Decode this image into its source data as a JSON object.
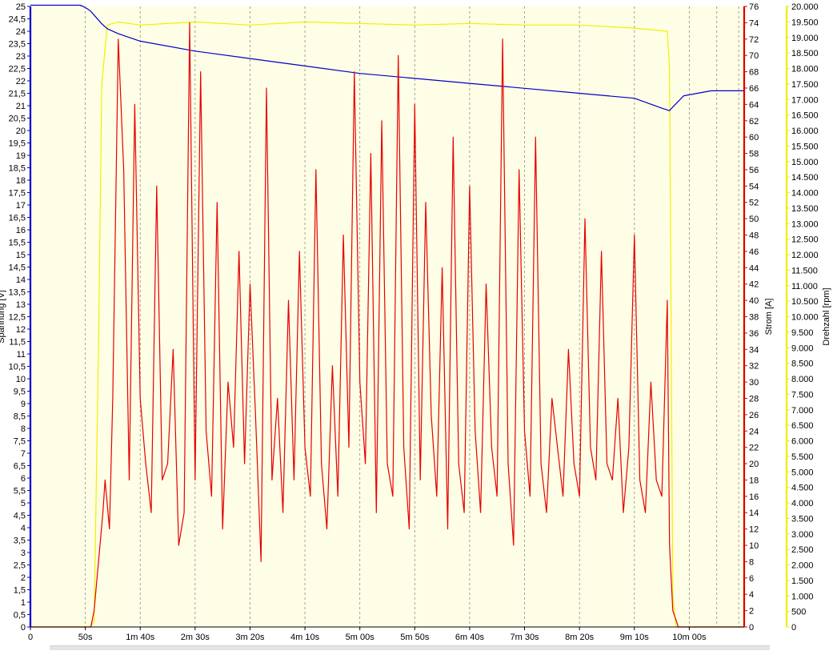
{
  "chart_data": {
    "type": "line",
    "title": "",
    "plot_background": "#fefee6",
    "grid": {
      "vertical": true,
      "horizontal": false,
      "style": "dashed"
    },
    "x_axis": {
      "label": "",
      "range_seconds": [
        0,
        650
      ],
      "ticks": [
        {
          "value": 0,
          "label": "0"
        },
        {
          "value": 50,
          "label": "50s"
        },
        {
          "value": 100,
          "label": "1m 40s"
        },
        {
          "value": 150,
          "label": "2m 30s"
        },
        {
          "value": 200,
          "label": "3m 20s"
        },
        {
          "value": 250,
          "label": "4m 10s"
        },
        {
          "value": 300,
          "label": "5m 00s"
        },
        {
          "value": 350,
          "label": "5m 50s"
        },
        {
          "value": 400,
          "label": "6m 40s"
        },
        {
          "value": 450,
          "label": "7m 30s"
        },
        {
          "value": 500,
          "label": "8m 20s"
        },
        {
          "value": 550,
          "label": "9m 10s"
        },
        {
          "value": 600,
          "label": "10m 00s"
        }
      ]
    },
    "y_axes": [
      {
        "id": "voltage",
        "label": "Spannung [V]",
        "side": "left",
        "color": "#0000cc",
        "range": [
          0,
          25
        ],
        "step": 0.5,
        "decimal_comma": true,
        "decimals": 1
      },
      {
        "id": "current",
        "label": "Strom [A]",
        "side": "right",
        "color": "#dd0000",
        "range": [
          0,
          76
        ],
        "step": 2,
        "decimals": 0
      },
      {
        "id": "rpm",
        "label": "Drehzahl [rpm]",
        "side": "right",
        "color": "#eeee00",
        "range": [
          0,
          20000
        ],
        "step": 500,
        "thousands_sep": "."
      }
    ],
    "series": [
      {
        "axis": "rpm",
        "color": "#f0f000",
        "x": [
          0,
          55,
          58,
          62,
          65,
          70,
          80,
          100,
          150,
          200,
          250,
          300,
          350,
          400,
          450,
          500,
          550,
          580,
          582,
          585,
          588,
          595,
          605,
          620,
          650
        ],
        "y": [
          0,
          0,
          200,
          9000,
          17500,
          19400,
          19500,
          19400,
          19500,
          19400,
          19500,
          19450,
          19400,
          19450,
          19400,
          19400,
          19300,
          19200,
          18000,
          1000,
          0,
          0,
          0,
          0,
          0
        ]
      },
      {
        "axis": "voltage",
        "color": "#0000c8",
        "x": [
          0,
          45,
          48,
          52,
          55,
          65,
          70,
          80,
          100,
          150,
          200,
          250,
          300,
          350,
          400,
          450,
          500,
          550,
          575,
          582,
          585,
          595,
          620,
          650
        ],
        "y": [
          25.05,
          25.05,
          25.0,
          24.9,
          24.8,
          24.3,
          24.1,
          23.9,
          23.6,
          23.2,
          22.9,
          22.6,
          22.3,
          22.1,
          21.9,
          21.7,
          21.5,
          21.3,
          20.9,
          20.8,
          20.95,
          21.4,
          21.6,
          21.6
        ]
      },
      {
        "axis": "current",
        "color": "#e60000",
        "x": [
          0,
          55,
          58,
          62,
          66,
          68,
          72,
          75,
          80,
          85,
          90,
          95,
          100,
          105,
          110,
          115,
          120,
          125,
          130,
          135,
          140,
          145,
          150,
          155,
          160,
          165,
          170,
          175,
          180,
          185,
          190,
          195,
          200,
          205,
          210,
          215,
          220,
          225,
          230,
          235,
          240,
          245,
          250,
          255,
          260,
          265,
          270,
          275,
          280,
          285,
          290,
          295,
          300,
          305,
          310,
          315,
          320,
          325,
          330,
          335,
          340,
          345,
          350,
          355,
          360,
          365,
          370,
          375,
          380,
          385,
          390,
          395,
          400,
          405,
          410,
          415,
          420,
          425,
          430,
          435,
          440,
          445,
          450,
          455,
          460,
          465,
          470,
          475,
          480,
          485,
          490,
          495,
          500,
          505,
          510,
          515,
          520,
          525,
          530,
          535,
          540,
          545,
          550,
          555,
          560,
          565,
          570,
          575,
          580,
          582,
          585,
          590,
          650
        ],
        "y": [
          0,
          0,
          2,
          8,
          14,
          18,
          12,
          28,
          72,
          56,
          18,
          64,
          28,
          20,
          14,
          54,
          18,
          20,
          34,
          10,
          14,
          74,
          18,
          68,
          24,
          16,
          52,
          12,
          30,
          22,
          46,
          20,
          42,
          26,
          8,
          66,
          18,
          28,
          14,
          40,
          18,
          46,
          22,
          16,
          56,
          20,
          12,
          32,
          16,
          48,
          22,
          68,
          30,
          20,
          58,
          14,
          62,
          20,
          16,
          70,
          22,
          12,
          64,
          18,
          52,
          26,
          16,
          44,
          12,
          60,
          20,
          14,
          54,
          24,
          14,
          42,
          22,
          16,
          72,
          20,
          10,
          56,
          24,
          16,
          60,
          20,
          14,
          28,
          22,
          16,
          34,
          20,
          16,
          50,
          22,
          18,
          46,
          20,
          18,
          28,
          14,
          22,
          48,
          18,
          14,
          30,
          18,
          16,
          40,
          10,
          2,
          0,
          0
        ]
      }
    ]
  }
}
